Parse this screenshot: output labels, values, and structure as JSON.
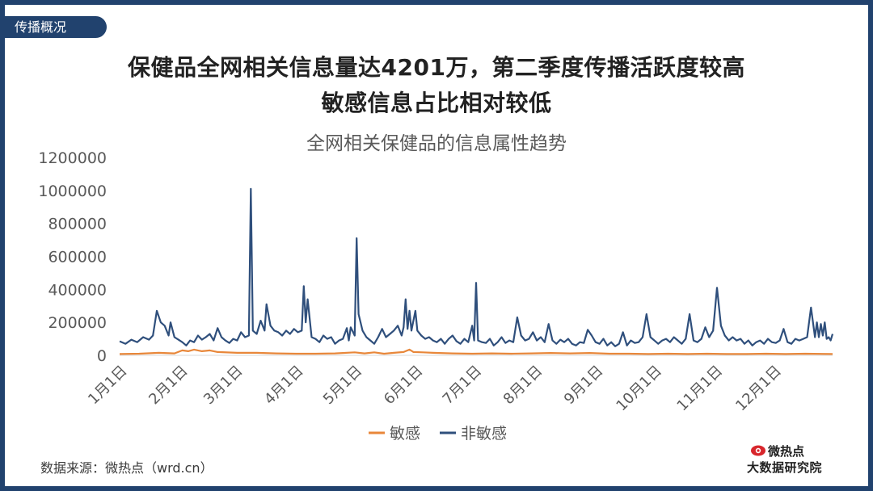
{
  "section_tag": "传播概况",
  "headline": {
    "line1": "保健品全网相关信息量达4201万，第二季度传播活跃度较高",
    "line2": "敏感信息占比相对较低"
  },
  "source": "数据来源：微热点（wrd.cn）",
  "logo": {
    "top": "微热点",
    "bottom": "大数据研究院"
  },
  "colors": {
    "frame": "#21426e",
    "sensitive": "#e8873a",
    "non_sensitive": "#2f4f7c"
  },
  "chart_data": {
    "type": "line",
    "title": "全网相关保健品的信息属性趋势",
    "legend_position": "bottom",
    "ylim": [
      0,
      1200000
    ],
    "y_ticks": [
      "1200000",
      "1000000",
      "800000",
      "600000",
      "400000",
      "200000",
      "0"
    ],
    "x_ticks": [
      {
        "day": 0,
        "label": "1月1日"
      },
      {
        "day": 31,
        "label": "2月1日"
      },
      {
        "day": 59,
        "label": "3月1日"
      },
      {
        "day": 90,
        "label": "4月1日"
      },
      {
        "day": 120,
        "label": "5月1日"
      },
      {
        "day": 151,
        "label": "6月1日"
      },
      {
        "day": 181,
        "label": "7月1日"
      },
      {
        "day": 212,
        "label": "8月1日"
      },
      {
        "day": 243,
        "label": "9月1日"
      },
      {
        "day": 273,
        "label": "10月1日"
      },
      {
        "day": 304,
        "label": "11月1日"
      },
      {
        "day": 334,
        "label": "12月1日"
      }
    ],
    "x_range": [
      0,
      364
    ],
    "series": [
      {
        "name": "非敏感",
        "points": [
          [
            0,
            85000
          ],
          [
            3,
            70000
          ],
          [
            6,
            95000
          ],
          [
            9,
            80000
          ],
          [
            12,
            110000
          ],
          [
            15,
            95000
          ],
          [
            17,
            120000
          ],
          [
            19,
            270000
          ],
          [
            21,
            200000
          ],
          [
            23,
            180000
          ],
          [
            25,
            120000
          ],
          [
            26,
            200000
          ],
          [
            28,
            110000
          ],
          [
            30,
            95000
          ],
          [
            32,
            80000
          ],
          [
            34,
            60000
          ],
          [
            36,
            90000
          ],
          [
            38,
            80000
          ],
          [
            40,
            120000
          ],
          [
            42,
            95000
          ],
          [
            44,
            110000
          ],
          [
            46,
            130000
          ],
          [
            48,
            90000
          ],
          [
            50,
            165000
          ],
          [
            52,
            110000
          ],
          [
            54,
            90000
          ],
          [
            56,
            75000
          ],
          [
            58,
            100000
          ],
          [
            60,
            90000
          ],
          [
            62,
            140000
          ],
          [
            64,
            110000
          ],
          [
            66,
            120000
          ],
          [
            67,
            1010000
          ],
          [
            68,
            150000
          ],
          [
            70,
            130000
          ],
          [
            72,
            210000
          ],
          [
            74,
            150000
          ],
          [
            75,
            310000
          ],
          [
            77,
            180000
          ],
          [
            79,
            150000
          ],
          [
            81,
            140000
          ],
          [
            83,
            120000
          ],
          [
            85,
            150000
          ],
          [
            87,
            130000
          ],
          [
            89,
            160000
          ],
          [
            91,
            140000
          ],
          [
            93,
            150000
          ],
          [
            94,
            420000
          ],
          [
            95,
            200000
          ],
          [
            96,
            340000
          ],
          [
            98,
            110000
          ],
          [
            100,
            100000
          ],
          [
            102,
            80000
          ],
          [
            104,
            120000
          ],
          [
            106,
            100000
          ],
          [
            108,
            110000
          ],
          [
            110,
            70000
          ],
          [
            112,
            90000
          ],
          [
            114,
            100000
          ],
          [
            116,
            165000
          ],
          [
            117,
            90000
          ],
          [
            118,
            170000
          ],
          [
            120,
            120000
          ],
          [
            121,
            710000
          ],
          [
            122,
            250000
          ],
          [
            124,
            150000
          ],
          [
            126,
            110000
          ],
          [
            128,
            90000
          ],
          [
            130,
            70000
          ],
          [
            132,
            110000
          ],
          [
            134,
            160000
          ],
          [
            136,
            110000
          ],
          [
            138,
            130000
          ],
          [
            140,
            150000
          ],
          [
            142,
            180000
          ],
          [
            144,
            120000
          ],
          [
            145,
            170000
          ],
          [
            146,
            340000
          ],
          [
            147,
            160000
          ],
          [
            148,
            270000
          ],
          [
            149,
            150000
          ],
          [
            151,
            270000
          ],
          [
            152,
            150000
          ],
          [
            154,
            120000
          ],
          [
            156,
            100000
          ],
          [
            158,
            110000
          ],
          [
            160,
            90000
          ],
          [
            162,
            80000
          ],
          [
            164,
            100000
          ],
          [
            166,
            70000
          ],
          [
            168,
            100000
          ],
          [
            170,
            120000
          ],
          [
            172,
            85000
          ],
          [
            174,
            70000
          ],
          [
            176,
            100000
          ],
          [
            178,
            80000
          ],
          [
            180,
            180000
          ],
          [
            181,
            90000
          ],
          [
            182,
            440000
          ],
          [
            183,
            90000
          ],
          [
            185,
            80000
          ],
          [
            187,
            75000
          ],
          [
            189,
            100000
          ],
          [
            191,
            60000
          ],
          [
            193,
            80000
          ],
          [
            195,
            110000
          ],
          [
            197,
            75000
          ],
          [
            199,
            90000
          ],
          [
            201,
            80000
          ],
          [
            203,
            230000
          ],
          [
            205,
            120000
          ],
          [
            207,
            90000
          ],
          [
            209,
            100000
          ],
          [
            211,
            140000
          ],
          [
            213,
            90000
          ],
          [
            215,
            110000
          ],
          [
            217,
            80000
          ],
          [
            219,
            190000
          ],
          [
            221,
            90000
          ],
          [
            223,
            70000
          ],
          [
            225,
            95000
          ],
          [
            227,
            80000
          ],
          [
            229,
            100000
          ],
          [
            231,
            70000
          ],
          [
            233,
            60000
          ],
          [
            235,
            80000
          ],
          [
            237,
            75000
          ],
          [
            239,
            155000
          ],
          [
            241,
            120000
          ],
          [
            243,
            80000
          ],
          [
            245,
            70000
          ],
          [
            247,
            100000
          ],
          [
            249,
            60000
          ],
          [
            251,
            80000
          ],
          [
            253,
            55000
          ],
          [
            255,
            70000
          ],
          [
            257,
            140000
          ],
          [
            259,
            60000
          ],
          [
            261,
            90000
          ],
          [
            263,
            75000
          ],
          [
            265,
            80000
          ],
          [
            267,
            110000
          ],
          [
            269,
            250000
          ],
          [
            271,
            110000
          ],
          [
            273,
            90000
          ],
          [
            275,
            70000
          ],
          [
            277,
            90000
          ],
          [
            279,
            100000
          ],
          [
            281,
            80000
          ],
          [
            283,
            110000
          ],
          [
            285,
            90000
          ],
          [
            287,
            70000
          ],
          [
            289,
            100000
          ],
          [
            291,
            250000
          ],
          [
            293,
            90000
          ],
          [
            295,
            80000
          ],
          [
            297,
            100000
          ],
          [
            299,
            170000
          ],
          [
            301,
            110000
          ],
          [
            303,
            150000
          ],
          [
            305,
            410000
          ],
          [
            307,
            180000
          ],
          [
            309,
            120000
          ],
          [
            311,
            90000
          ],
          [
            313,
            110000
          ],
          [
            315,
            90000
          ],
          [
            317,
            100000
          ],
          [
            319,
            70000
          ],
          [
            321,
            90000
          ],
          [
            323,
            60000
          ],
          [
            325,
            80000
          ],
          [
            327,
            90000
          ],
          [
            329,
            70000
          ],
          [
            331,
            100000
          ],
          [
            333,
            80000
          ],
          [
            335,
            75000
          ],
          [
            337,
            90000
          ],
          [
            339,
            160000
          ],
          [
            341,
            80000
          ],
          [
            343,
            70000
          ],
          [
            345,
            100000
          ],
          [
            347,
            90000
          ],
          [
            349,
            100000
          ],
          [
            351,
            110000
          ],
          [
            353,
            290000
          ],
          [
            355,
            110000
          ],
          [
            356,
            200000
          ],
          [
            357,
            110000
          ],
          [
            358,
            190000
          ],
          [
            359,
            120000
          ],
          [
            360,
            200000
          ],
          [
            361,
            100000
          ],
          [
            362,
            110000
          ],
          [
            363,
            90000
          ],
          [
            364,
            130000
          ]
        ]
      },
      {
        "name": "敏感",
        "points": [
          [
            0,
            8000
          ],
          [
            10,
            10000
          ],
          [
            20,
            15000
          ],
          [
            28,
            12000
          ],
          [
            32,
            30000
          ],
          [
            35,
            25000
          ],
          [
            38,
            35000
          ],
          [
            42,
            25000
          ],
          [
            46,
            30000
          ],
          [
            50,
            20000
          ],
          [
            60,
            15000
          ],
          [
            70,
            15000
          ],
          [
            80,
            12000
          ],
          [
            90,
            10000
          ],
          [
            100,
            10000
          ],
          [
            110,
            12000
          ],
          [
            120,
            18000
          ],
          [
            125,
            12000
          ],
          [
            130,
            18000
          ],
          [
            135,
            10000
          ],
          [
            140,
            15000
          ],
          [
            145,
            20000
          ],
          [
            148,
            35000
          ],
          [
            150,
            20000
          ],
          [
            155,
            18000
          ],
          [
            160,
            15000
          ],
          [
            170,
            12000
          ],
          [
            180,
            10000
          ],
          [
            190,
            12000
          ],
          [
            200,
            10000
          ],
          [
            210,
            12000
          ],
          [
            220,
            14000
          ],
          [
            230,
            12000
          ],
          [
            240,
            14000
          ],
          [
            250,
            10000
          ],
          [
            260,
            10000
          ],
          [
            270,
            8000
          ],
          [
            280,
            10000
          ],
          [
            290,
            8000
          ],
          [
            300,
            10000
          ],
          [
            310,
            8000
          ],
          [
            320,
            8000
          ],
          [
            330,
            10000
          ],
          [
            340,
            8000
          ],
          [
            350,
            10000
          ],
          [
            364,
            8000
          ]
        ]
      }
    ]
  }
}
